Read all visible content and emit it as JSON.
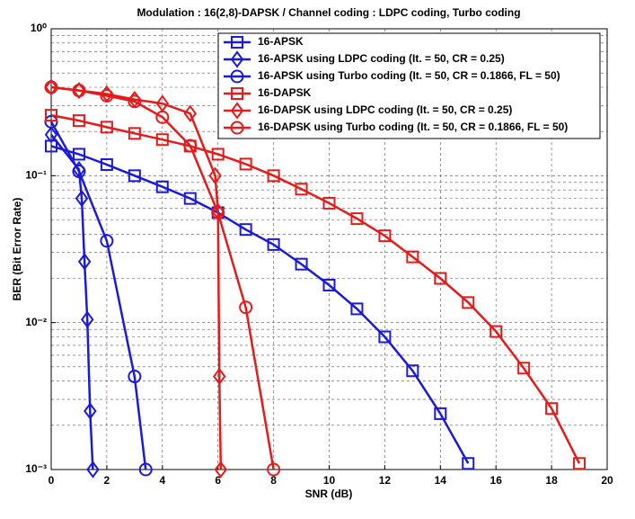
{
  "chart_data": {
    "type": "line",
    "title": "Modulation : 16(2,8)-DAPSK / Channel coding : LDPC coding, Turbo coding",
    "xlabel": "SNR (dB)",
    "ylabel": "BER (Bit Error Rate)",
    "xlim": [
      0,
      20
    ],
    "xticks": [
      0,
      2,
      4,
      6,
      8,
      10,
      12,
      14,
      16,
      18,
      20
    ],
    "ylim": [
      0.001,
      1
    ],
    "yticks": [
      {
        "value": 0.001,
        "label": "10⁻³"
      },
      {
        "value": 0.01,
        "label": "10⁻²"
      },
      {
        "value": 0.1,
        "label": "10⁻¹"
      },
      {
        "value": 1,
        "label": "10⁰"
      }
    ],
    "ylog": true,
    "grid": true,
    "legend": "upper right",
    "series": [
      {
        "name": "16-APSK",
        "color": "#1a1ad8",
        "marker": "square",
        "x": [
          0,
          1,
          2,
          3,
          4,
          5,
          6,
          7,
          8,
          9,
          10,
          11,
          12,
          13,
          14,
          15
        ],
        "values": [
          0.159,
          0.14,
          0.119,
          0.1,
          0.084,
          0.07,
          0.056,
          0.043,
          0.034,
          0.025,
          0.018,
          0.0124,
          0.008,
          0.0047,
          0.0024,
          0.0011
        ]
      },
      {
        "name": "16-APSK using LDPC coding (It. = 50, CR = 0.25)",
        "color": "#1a1ad8",
        "marker": "diamond",
        "x": [
          0,
          1,
          1.1,
          1.2,
          1.3,
          1.4,
          1.5
        ],
        "values": [
          0.19,
          0.11,
          0.07,
          0.026,
          0.0105,
          0.0025,
          0.001
        ]
      },
      {
        "name": "16-APSK using Turbo coding (It. = 50, CR = 0.1866, FL = 50)",
        "color": "#1a1ad8",
        "marker": "circle",
        "x": [
          0,
          1,
          2,
          3,
          3.4
        ],
        "values": [
          0.233,
          0.107,
          0.036,
          0.0043,
          0.001
        ]
      },
      {
        "name": "16-DAPSK",
        "color": "#e41b1b",
        "marker": "square",
        "x": [
          0,
          1,
          2,
          3,
          4,
          5,
          6,
          7,
          8,
          9,
          10,
          11,
          12,
          13,
          14,
          15,
          16,
          17,
          18,
          19
        ],
        "values": [
          0.258,
          0.237,
          0.214,
          0.194,
          0.176,
          0.159,
          0.14,
          0.12,
          0.1,
          0.081,
          0.065,
          0.051,
          0.039,
          0.028,
          0.02,
          0.0137,
          0.0087,
          0.0049,
          0.0026,
          0.0011
        ]
      },
      {
        "name": "16-DAPSK using LDPC coding (It. = 50, CR = 0.25)",
        "color": "#e41b1b",
        "marker": "diamond",
        "x": [
          0,
          1,
          2,
          3,
          4,
          5,
          5.9,
          6,
          6.05,
          6.1
        ],
        "values": [
          0.4,
          0.38,
          0.36,
          0.33,
          0.31,
          0.265,
          0.1,
          0.057,
          0.0043,
          0.001
        ]
      },
      {
        "name": "16-DAPSK using Turbo coding (It. = 50, CR = 0.1866, FL = 50)",
        "color": "#e41b1b",
        "marker": "circle",
        "x": [
          0,
          1,
          2,
          3,
          4,
          5,
          6,
          7,
          8
        ],
        "values": [
          0.4,
          0.38,
          0.35,
          0.32,
          0.25,
          0.16,
          0.056,
          0.0127,
          0.001
        ]
      }
    ]
  }
}
